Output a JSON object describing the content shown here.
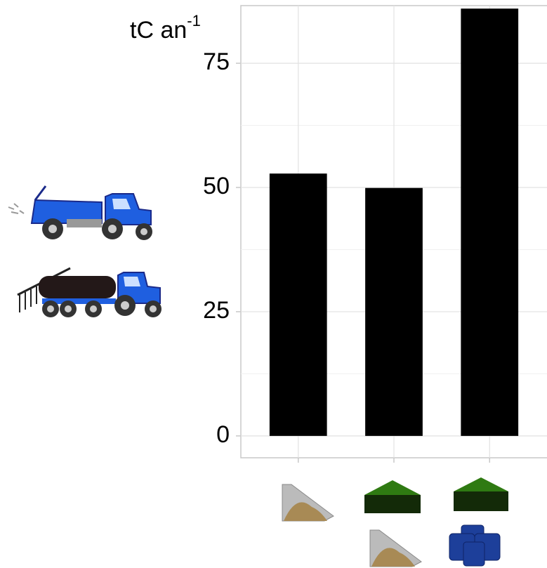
{
  "chart_data": {
    "type": "bar",
    "ylabel": {
      "text": "tC an",
      "superscript": "-1"
    },
    "categories": [
      null,
      null,
      null
    ],
    "values": [
      52.8,
      49.9,
      86
    ],
    "color": "#000000",
    "ylim": [
      -4.4,
      86.6
    ],
    "yticks": [
      0,
      25,
      50,
      75
    ],
    "grid": true
  }
}
